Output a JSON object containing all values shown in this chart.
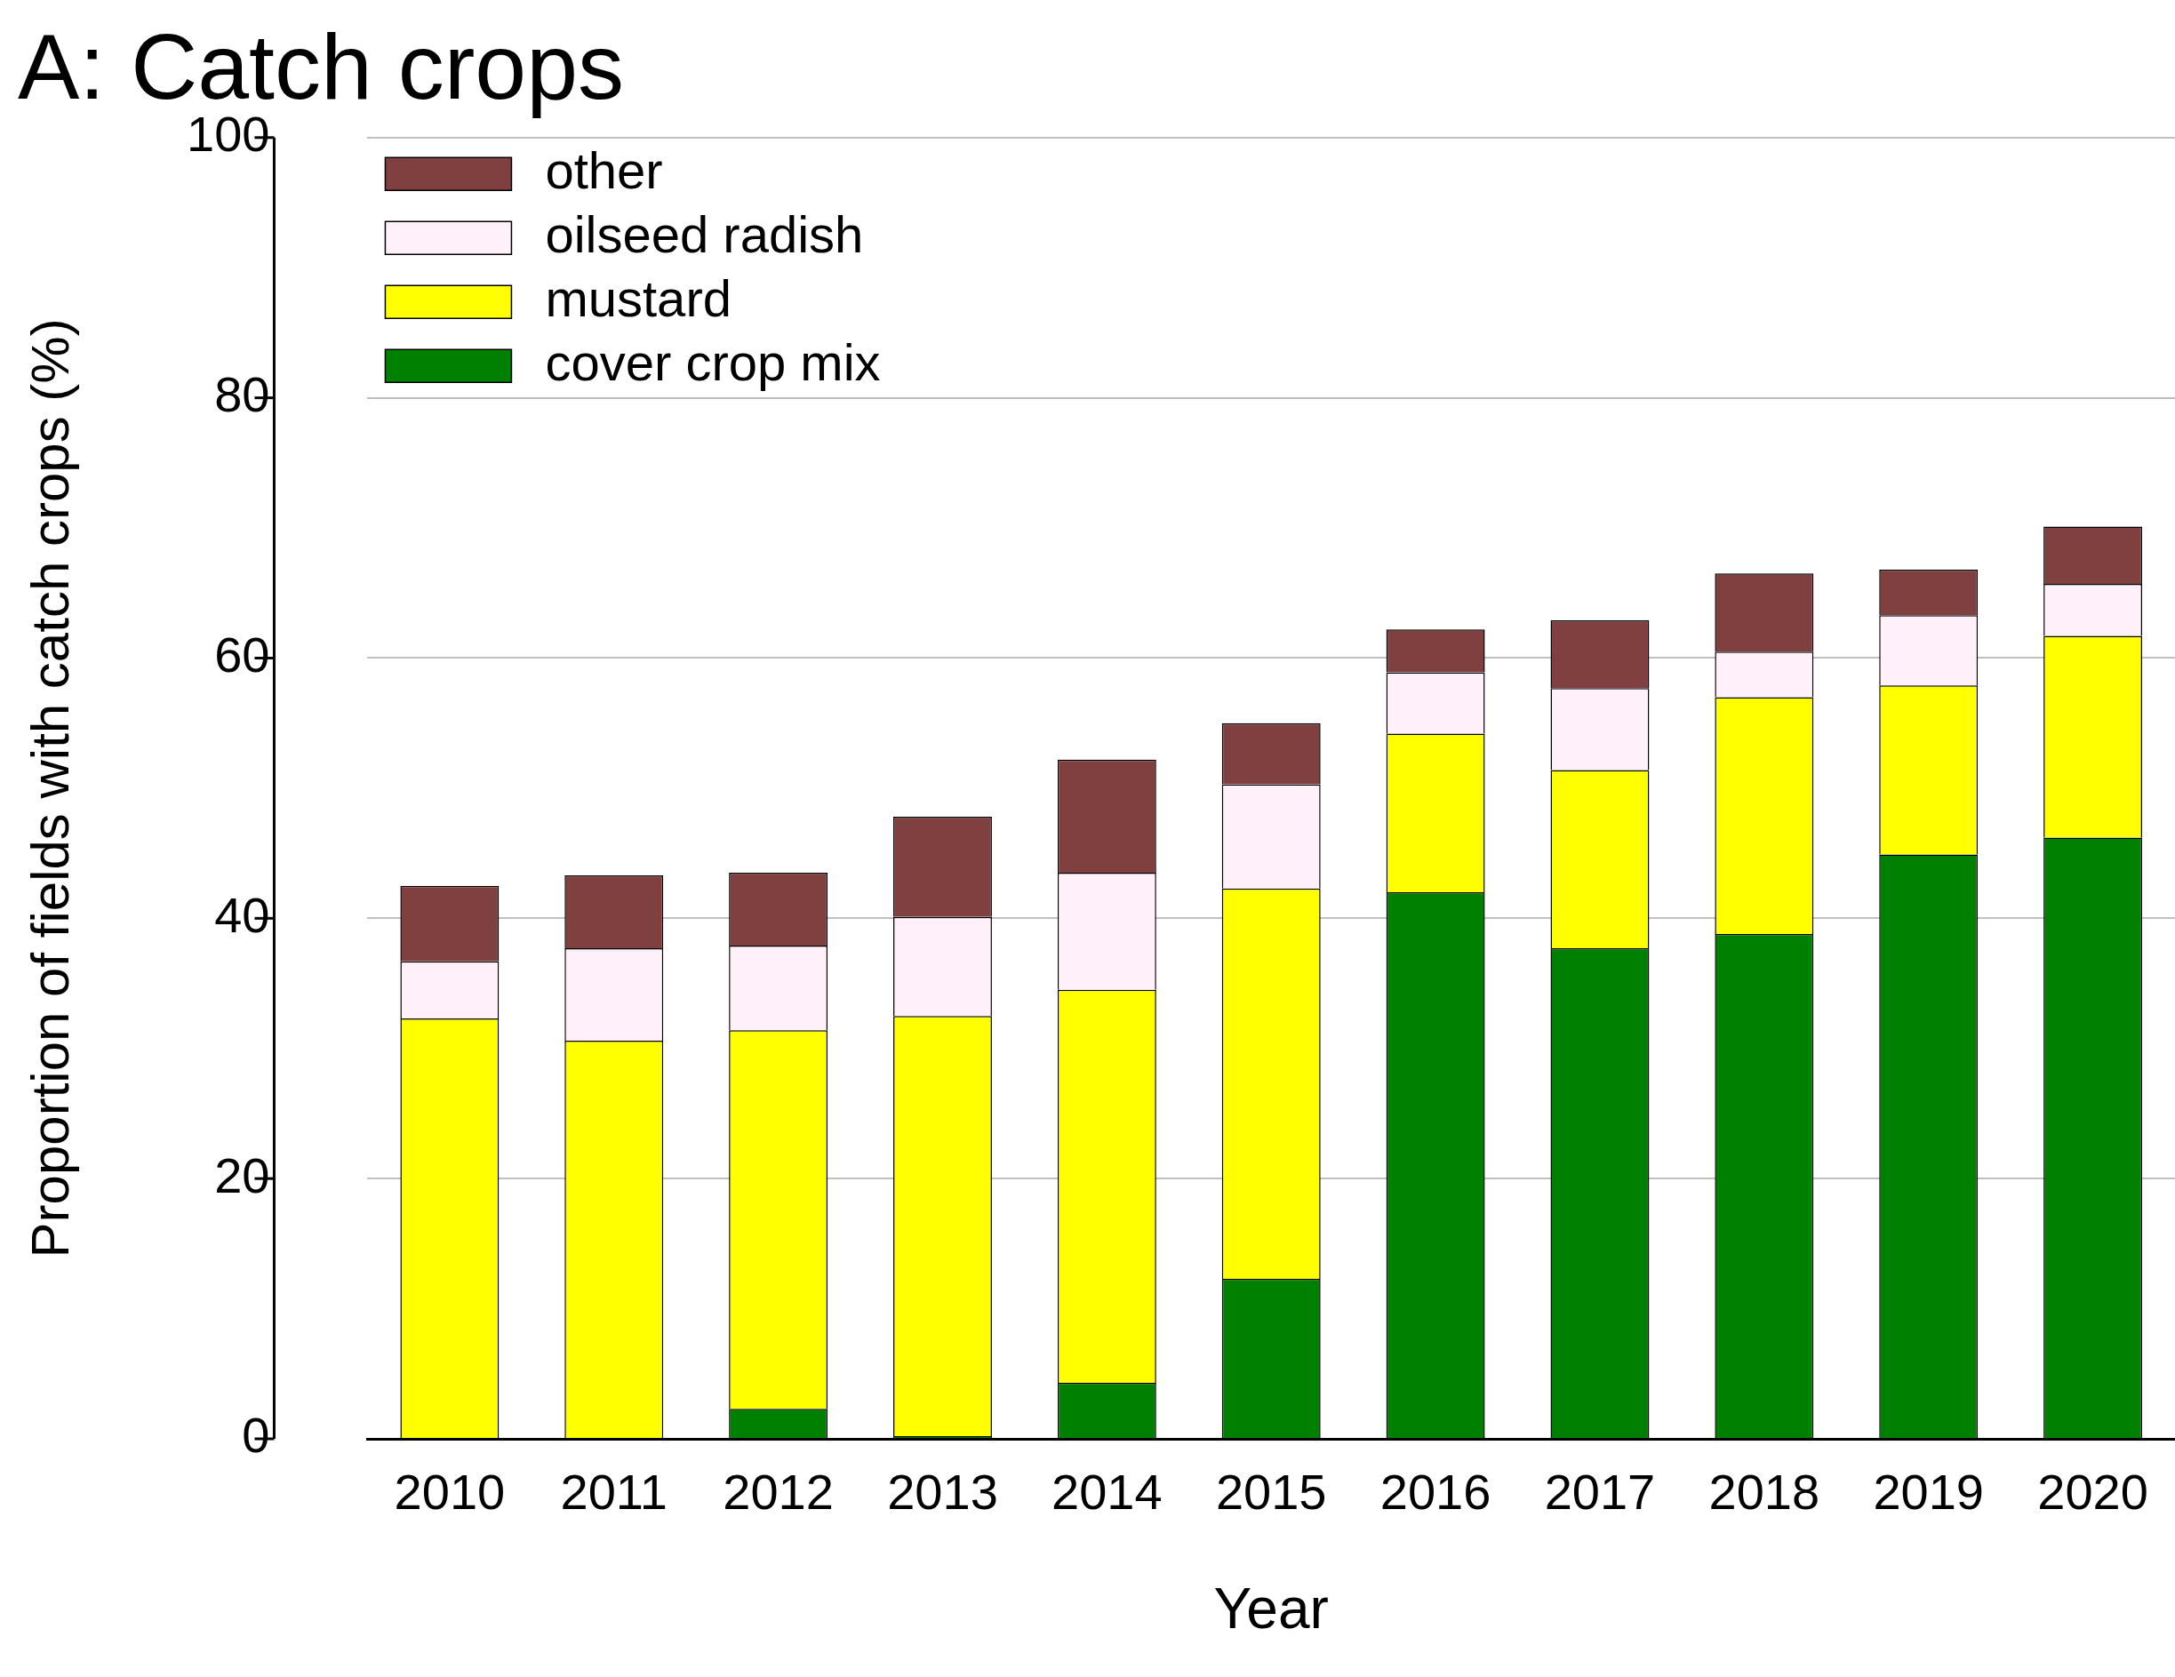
{
  "chart_data": {
    "type": "bar",
    "title": "A: Catch crops",
    "xlabel": "Year",
    "ylabel": "Proportion of fields with catch crops (%)",
    "categories": [
      "2010",
      "2011",
      "2012",
      "2013",
      "2014",
      "2015",
      "2016",
      "2017",
      "2018",
      "2019",
      "2020"
    ],
    "stacked": true,
    "series": [
      {
        "name": "cover crop mix",
        "color": "#008000",
        "values": [
          0,
          0,
          2.3,
          0.2,
          4.3,
          12.3,
          42.0,
          37.7,
          38.8,
          44.9,
          46.2
        ]
      },
      {
        "name": "mustard",
        "color": "#ffff00",
        "values": [
          32.3,
          30.6,
          29.1,
          32.3,
          30.2,
          30.0,
          12.2,
          13.7,
          18.2,
          13.0,
          15.5
        ]
      },
      {
        "name": "oilseed radish",
        "color": "#fff0fa",
        "values": [
          4.4,
          7.1,
          6.5,
          7.6,
          9.0,
          8.0,
          4.7,
          6.3,
          3.5,
          5.4,
          4.0
        ]
      },
      {
        "name": "other",
        "color": "#804040",
        "values": [
          5.8,
          5.6,
          5.6,
          7.7,
          8.7,
          4.7,
          3.3,
          5.2,
          6.0,
          3.5,
          4.4
        ]
      }
    ],
    "ylim": [
      0,
      100
    ],
    "yticks": [
      0,
      20,
      40,
      60,
      80,
      100
    ],
    "grid": "y",
    "legend": "top left"
  }
}
